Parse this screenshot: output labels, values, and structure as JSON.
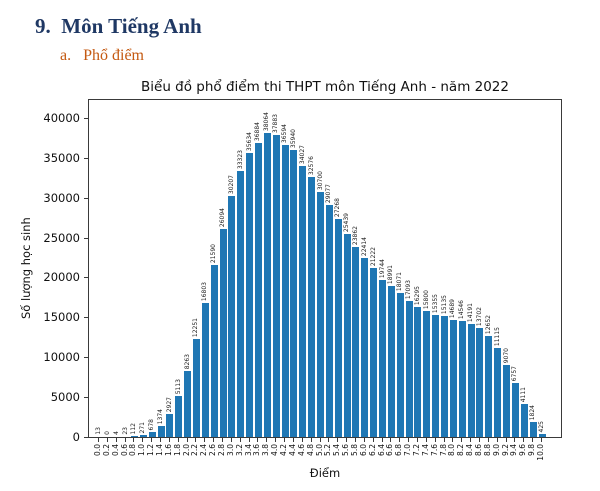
{
  "page": {
    "heading": "9.  Môn Tiếng Anh",
    "subheading": "a.   Phổ điểm"
  },
  "colors": {
    "heading": "#1f3864",
    "subheading": "#c45911",
    "bar": "#1f77b4",
    "axis": "#3a3a3a"
  },
  "chart_data": {
    "type": "bar",
    "title": "Biểu đồ phổ điểm thi THPT môn Tiếng Anh - năm 2022",
    "xlabel": "Điểm",
    "ylabel": "Số lượng học sinh",
    "grid": false,
    "legend": null,
    "bar_color": "#1f77b4",
    "ylim": [
      0,
      42500
    ],
    "yticks": [
      0,
      5000,
      10000,
      15000,
      20000,
      25000,
      30000,
      35000,
      40000
    ],
    "categories": [
      "0.0",
      "0.2",
      "0.4",
      "0.6",
      "0.8",
      "1.0",
      "1.2",
      "1.4",
      "1.6",
      "1.8",
      "2.0",
      "2.2",
      "2.4",
      "2.6",
      "2.8",
      "3.0",
      "3.2",
      "3.4",
      "3.6",
      "3.8",
      "4.0",
      "4.2",
      "4.4",
      "4.6",
      "4.8",
      "5.0",
      "5.2",
      "5.4",
      "5.6",
      "5.8",
      "6.0",
      "6.2",
      "6.4",
      "6.6",
      "6.8",
      "7.0",
      "7.2",
      "7.4",
      "7.6",
      "7.8",
      "8.0",
      "8.2",
      "8.4",
      "8.6",
      "8.8",
      "9.0",
      "9.2",
      "9.4",
      "9.6",
      "9.8",
      "10.0"
    ],
    "values": [
      13,
      0,
      4,
      23,
      112,
      271,
      678,
      1374,
      2927,
      5113,
      8263,
      12251,
      16803,
      21590,
      26094,
      30207,
      33323,
      35634,
      36884,
      38064,
      37883,
      36594,
      35940,
      34027,
      32576,
      30700,
      29077,
      27268,
      25439,
      23862,
      22414,
      21222,
      19744,
      18991,
      18071,
      17093,
      16295,
      15800,
      15355,
      15135,
      14689,
      14546,
      14191,
      13702,
      12652,
      11115,
      9070,
      6757,
      4111,
      1824,
      425
    ]
  }
}
